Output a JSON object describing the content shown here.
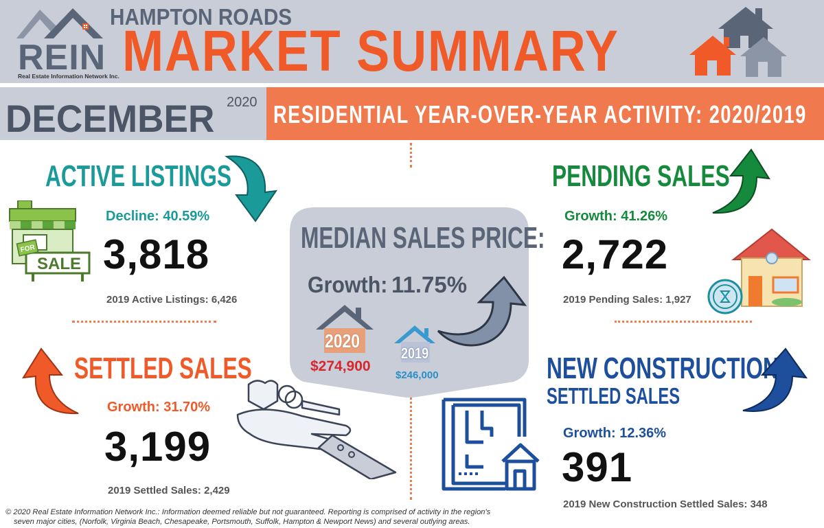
{
  "header": {
    "brand": "REIN",
    "brand_sub": "Real Estate Information Network Inc.",
    "region": "HAMPTON ROADS",
    "title": "MARKET SUMMARY",
    "month": "DECEMBER",
    "year": "2020",
    "banner": "RESIDENTIAL YEAR-OVER-YEAR ACTIVITY: 2020/2019"
  },
  "active_listings": {
    "title": "ACTIVE LISTINGS",
    "change": "Decline:  40.59%",
    "value": "3,818",
    "prior": "2019 Active Listings: 6,426",
    "sign_for": "FOR",
    "sign_sale": "SALE"
  },
  "pending_sales": {
    "title": "PENDING SALES",
    "change": "Growth:  41.26%",
    "value": "2,722",
    "prior": "2019 Pending Sales: 1,927"
  },
  "median_price": {
    "title": "MEDIAN SALES PRICE:",
    "change": "Growth:",
    "change_pct": "11.75%",
    "year_current": "2020",
    "price_current": "$274,900",
    "year_prior": "2019",
    "price_prior": "$246,000"
  },
  "settled_sales": {
    "title": "SETTLED SALES",
    "change": "Growth:  31.70%",
    "value": "3,199",
    "prior": "2019 Settled Sales:  2,429"
  },
  "new_construction": {
    "title": "NEW CONSTRUCTION",
    "subtitle": "SETTLED SALES",
    "change": "Growth:  12.36%",
    "value": "391",
    "prior": "2019 New Construction Settled Sales: 348"
  },
  "footer": {
    "line1": "© 2020 Real Estate Information Network Inc.: Information deemed reliable but not guaranteed. Reporting is comprised of activity in the region's",
    "line2": "seven major cities, (Norfolk, Virginia Beach, Chesapeake, Portsmouth, Suffolk, Hampton & Newport News) and several outlying areas."
  },
  "colors": {
    "orange": "#f05a28",
    "teal": "#1b9a9a",
    "green": "#158a3d",
    "blue": "#1d4f9c",
    "slate": "#5a6577",
    "band": "#c8cdd7"
  },
  "icons": [
    "rein-logo-houses-icon",
    "houses-cluster-icon",
    "down-arrow-icon",
    "up-arrow-icon",
    "for-sale-shop-icon",
    "house-icon",
    "hand-with-keys-icon",
    "floor-plan-icon"
  ]
}
